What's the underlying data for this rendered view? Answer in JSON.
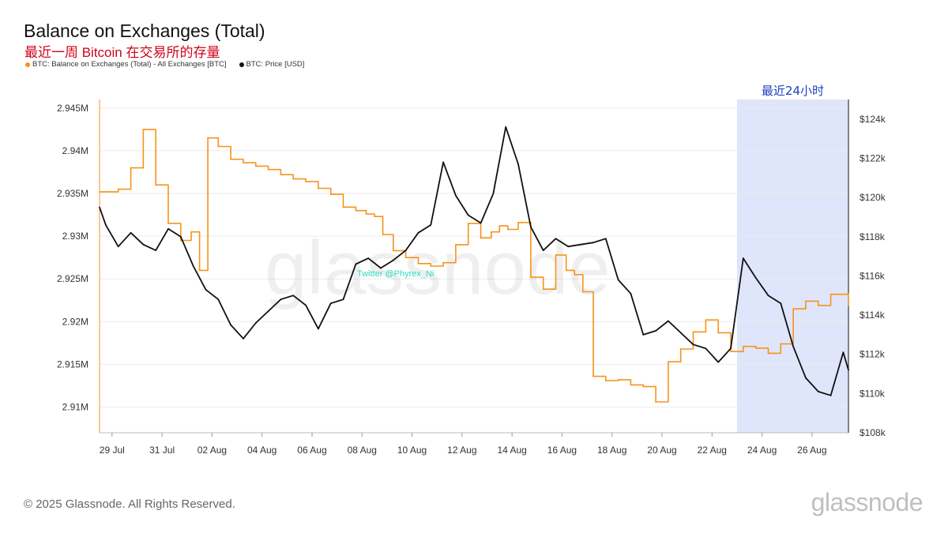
{
  "header": {
    "title": "Balance on Exchanges (Total)",
    "subtitle": "最近一周 Bitcoin 在交易所的存量"
  },
  "legend": [
    {
      "label": "BTC: Balance on Exchanges (Total) - All Exchanges [BTC]",
      "color": "#f7931a",
      "icon": "dot-icon"
    },
    {
      "label": "BTC: Price [USD]",
      "color": "#111111",
      "icon": "dot-icon"
    }
  ],
  "footer": {
    "copyright": "© 2025 Glassnode. All Rights Reserved.",
    "brand": "glassnode"
  },
  "watermark": {
    "text": "glassnode",
    "credit": "Twitter @Phyrex_Ni"
  },
  "chart_data": {
    "type": "line",
    "x_tick_labels": [
      "29 Jul",
      "31 Jul",
      "02 Aug",
      "04 Aug",
      "06 Aug",
      "08 Aug",
      "10 Aug",
      "12 Aug",
      "14 Aug",
      "16 Aug",
      "18 Aug",
      "20 Aug",
      "22 Aug",
      "24 Aug",
      "26 Aug"
    ],
    "x_range_days": [
      28.5,
      27.45
    ],
    "y_left": {
      "ticks": [
        2910000,
        2915000,
        2920000,
        2925000,
        2930000,
        2935000,
        2940000,
        2945000
      ],
      "tick_labels": [
        "2.91M",
        "2.915M",
        "2.92M",
        "2.925M",
        "2.93M",
        "2.935M",
        "2.94M",
        "2.945M"
      ],
      "range": [
        2907000,
        2946000
      ]
    },
    "y_right": {
      "ticks": [
        108000,
        110000,
        112000,
        114000,
        116000,
        118000,
        120000,
        122000,
        124000
      ],
      "tick_labels": [
        "$108k",
        "$110k",
        "$112k",
        "$114k",
        "$116k",
        "$118k",
        "$120k",
        "$122k",
        "$124k"
      ],
      "range": [
        108000,
        125000
      ]
    },
    "highlight": {
      "label": "最近24小时",
      "from_day": "23 Aug",
      "to_day": "27 Aug",
      "color": "#dfe5fa"
    },
    "grid": true,
    "series": [
      {
        "name": "BTC: Balance on Exchanges (Total) - All Exchanges [BTC]",
        "axis": "left",
        "color": "#f7931a",
        "x": [
          "28 Jul",
          "29 Jul",
          "29 Jul",
          "30 Jul",
          "30 Jul",
          "31 Jul",
          "31 Jul",
          "01 Aug",
          "01 Aug",
          "01 Aug",
          "02 Aug",
          "02 Aug",
          "03 Aug",
          "03 Aug",
          "04 Aug",
          "04 Aug",
          "05 Aug",
          "05 Aug",
          "06 Aug",
          "06 Aug",
          "07 Aug",
          "07 Aug",
          "08 Aug",
          "08 Aug",
          "08 Aug",
          "09 Aug",
          "09 Aug",
          "10 Aug",
          "10 Aug",
          "11 Aug",
          "11 Aug",
          "12 Aug",
          "12 Aug",
          "13 Aug",
          "13 Aug",
          "13 Aug",
          "14 Aug",
          "14 Aug",
          "15 Aug",
          "15 Aug",
          "16 Aug",
          "16 Aug",
          "16 Aug",
          "17 Aug",
          "17 Aug",
          "18 Aug",
          "18 Aug",
          "19 Aug",
          "19 Aug",
          "20 Aug",
          "20 Aug",
          "21 Aug",
          "21 Aug",
          "22 Aug",
          "22 Aug",
          "23 Aug",
          "23 Aug",
          "24 Aug",
          "24 Aug",
          "25 Aug",
          "25 Aug",
          "26 Aug",
          "26 Aug",
          "27 Aug"
        ],
        "values": [
          2935200,
          2935500,
          2938000,
          2942500,
          2936000,
          2931500,
          2929500,
          2930500,
          2926000,
          2941500,
          2940500,
          2939000,
          2938600,
          2938200,
          2937800,
          2937200,
          2936700,
          2936400,
          2935600,
          2934900,
          2933400,
          2933000,
          2932600,
          2932300,
          2930200,
          2928300,
          2927500,
          2926800,
          2926500,
          2926900,
          2929000,
          2931500,
          2929800,
          2930500,
          2931200,
          2930800,
          2931600,
          2925200,
          2923800,
          2927800,
          2926000,
          2925500,
          2923500,
          2913600,
          2913100,
          2913200,
          2912600,
          2912400,
          2910600,
          2915300,
          2916800,
          2918800,
          2920200,
          2918700,
          2916500,
          2917100,
          2916900,
          2916300,
          2917400,
          2921500,
          2922400,
          2921900,
          2923200,
          2921900
        ]
      },
      {
        "name": "BTC: Price [USD]",
        "axis": "right",
        "color": "#111111",
        "x": [
          "28 Jul",
          "28 Jul",
          "29 Jul",
          "29 Jul",
          "30 Jul",
          "30 Jul",
          "31 Jul",
          "31 Jul",
          "01 Aug",
          "01 Aug",
          "02 Aug",
          "02 Aug",
          "03 Aug",
          "03 Aug",
          "04 Aug",
          "04 Aug",
          "05 Aug",
          "05 Aug",
          "06 Aug",
          "06 Aug",
          "07 Aug",
          "07 Aug",
          "08 Aug",
          "08 Aug",
          "09 Aug",
          "09 Aug",
          "10 Aug",
          "10 Aug",
          "11 Aug",
          "11 Aug",
          "12 Aug",
          "12 Aug",
          "13 Aug",
          "13 Aug",
          "14 Aug",
          "14 Aug",
          "15 Aug",
          "15 Aug",
          "16 Aug",
          "16 Aug",
          "17 Aug",
          "17 Aug",
          "18 Aug",
          "18 Aug",
          "19 Aug",
          "19 Aug",
          "20 Aug",
          "20 Aug",
          "21 Aug",
          "21 Aug",
          "22 Aug",
          "22 Aug",
          "23 Aug",
          "23 Aug",
          "24 Aug",
          "24 Aug",
          "25 Aug",
          "25 Aug",
          "26 Aug",
          "26 Aug",
          "27 Aug",
          "27 Aug"
        ],
        "values": [
          119500,
          118600,
          117500,
          118200,
          117600,
          117300,
          118400,
          118000,
          116500,
          115300,
          114800,
          113500,
          112800,
          113600,
          114200,
          114800,
          115000,
          114500,
          113300,
          114600,
          114800,
          116600,
          116900,
          116400,
          116800,
          117300,
          118200,
          118600,
          121800,
          120100,
          119100,
          118700,
          120200,
          123600,
          121700,
          118500,
          117300,
          117900,
          117500,
          117600,
          117700,
          117900,
          115800,
          115100,
          113000,
          113200,
          113700,
          113100,
          112500,
          112300,
          111600,
          112300,
          116900,
          115900,
          115000,
          114600,
          112400,
          110800,
          110100,
          109900,
          112100,
          111200
        ]
      }
    ]
  }
}
